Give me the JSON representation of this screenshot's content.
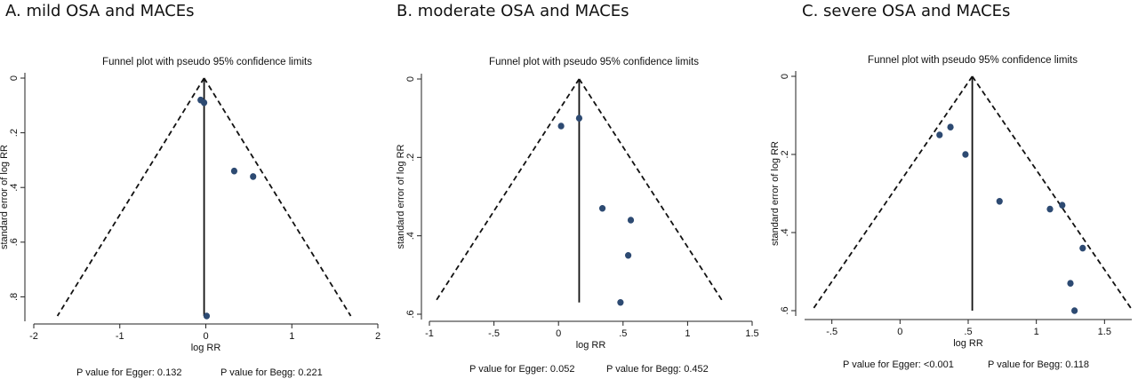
{
  "panels": [
    {
      "panel_title": "A. mild OSA and MACEs",
      "plot_title": "Funnel plot with pseudo 95% confidence limits",
      "egger": "P value for Egger: 0.132",
      "begg": "P value for Begg: 0.221"
    },
    {
      "panel_title": "B. moderate OSA and MACEs",
      "plot_title": "Funnel plot with pseudo 95% confidence limits",
      "egger": "P value for Egger: 0.052",
      "begg": "P value for Begg: 0.452"
    },
    {
      "panel_title": "C. severe OSA and MACEs",
      "plot_title": "Funnel plot with pseudo 95% confidence limits",
      "egger": "P value for Egger: <0.001",
      "begg": "P value for Begg: 0.118"
    }
  ],
  "chart_data": [
    {
      "type": "scatter",
      "title": "Funnel plot with pseudo 95% confidence limits",
      "xlabel": "log RR",
      "ylabel": "standard error of log RR",
      "xlim": [
        -2,
        2
      ],
      "ylim": [
        0,
        0.87
      ],
      "y_reversed": true,
      "xticks": [
        -2,
        -1,
        0,
        1,
        2
      ],
      "xtick_labels": [
        "-2",
        "-1",
        "0",
        "1",
        "2"
      ],
      "yticks": [
        0,
        0.2,
        0.4,
        0.6,
        0.8
      ],
      "ytick_labels": [
        "0",
        ".2",
        ".4",
        ".6",
        ".8"
      ],
      "pooled_estimate": -0.02,
      "funnel_base_se": 0.87,
      "points": [
        {
          "x": -0.06,
          "y": 0.08
        },
        {
          "x": -0.02,
          "y": 0.09
        },
        {
          "x": 0.33,
          "y": 0.34
        },
        {
          "x": 0.55,
          "y": 0.36
        },
        {
          "x": 0.01,
          "y": 0.87
        }
      ],
      "grid": false,
      "color": "#2d4a72"
    },
    {
      "type": "scatter",
      "title": "Funnel plot with pseudo 95% confidence limits",
      "xlabel": "log RR",
      "ylabel": "standard error of log RR",
      "xlim": [
        -1,
        1.5
      ],
      "ylim": [
        0,
        0.6
      ],
      "y_reversed": true,
      "xticks": [
        -1,
        -0.5,
        0,
        0.5,
        1,
        1.5
      ],
      "xtick_labels": [
        "-1",
        "-.5",
        "0",
        ".5",
        "1",
        "1.5"
      ],
      "yticks": [
        0,
        0.2,
        0.4,
        0.6
      ],
      "ytick_labels": [
        "0",
        ".2",
        ".4",
        ".6"
      ],
      "pooled_estimate": 0.16,
      "funnel_base_se": 0.57,
      "points": [
        {
          "x": 0.02,
          "y": 0.12
        },
        {
          "x": 0.16,
          "y": 0.1
        },
        {
          "x": 0.34,
          "y": 0.33
        },
        {
          "x": 0.56,
          "y": 0.36
        },
        {
          "x": 0.54,
          "y": 0.45
        },
        {
          "x": 0.48,
          "y": 0.57
        }
      ],
      "grid": false,
      "color": "#2d4a72"
    },
    {
      "type": "scatter",
      "title": "Funnel plot with pseudo 95% confidence limits",
      "xlabel": "log RR",
      "ylabel": "standard error of log RR",
      "xlim": [
        -0.7,
        1.7
      ],
      "ylim": [
        0,
        0.6
      ],
      "y_reversed": true,
      "xticks": [
        -0.5,
        0,
        0.5,
        1,
        1.5
      ],
      "xtick_labels": [
        "-.5",
        "0",
        ".5",
        "1",
        "1.5"
      ],
      "yticks": [
        0,
        0.2,
        0.4,
        0.6
      ],
      "ytick_labels": [
        "0",
        ".2",
        ".4",
        ".6"
      ],
      "pooled_estimate": 0.53,
      "funnel_base_se": 0.6,
      "points": [
        {
          "x": 0.29,
          "y": 0.15
        },
        {
          "x": 0.37,
          "y": 0.13
        },
        {
          "x": 0.48,
          "y": 0.2
        },
        {
          "x": 0.73,
          "y": 0.32
        },
        {
          "x": 1.1,
          "y": 0.34
        },
        {
          "x": 1.19,
          "y": 0.33
        },
        {
          "x": 1.34,
          "y": 0.44
        },
        {
          "x": 1.25,
          "y": 0.53
        },
        {
          "x": 1.28,
          "y": 0.6
        }
      ],
      "grid": false,
      "color": "#2d4a72"
    }
  ]
}
